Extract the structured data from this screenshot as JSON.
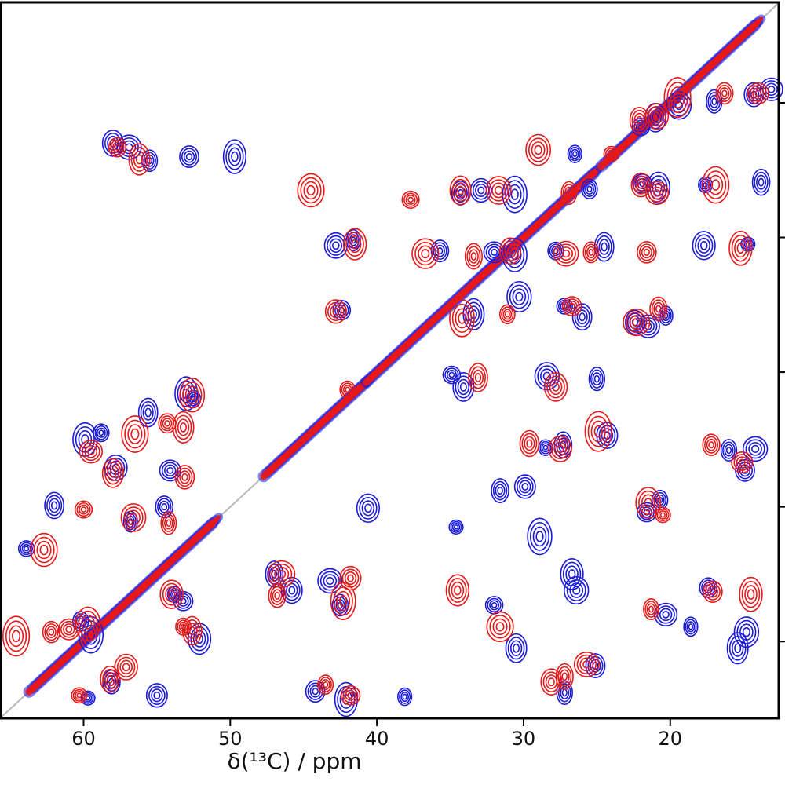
{
  "chart_data": {
    "type": "scatter",
    "subtype": "2D NMR correlation contour spectrum",
    "xlabel": "δ(¹³C) / ppm",
    "ylabel": "",
    "x_reversed": true,
    "xlim": [
      65.7,
      12.6
    ],
    "ylim": [
      12.6,
      65.7
    ],
    "x_ticks": [
      60,
      50,
      40,
      30,
      20
    ],
    "x_tick_labels": [
      "60",
      "50",
      "40",
      "30",
      "20"
    ],
    "diagonal": true,
    "diagonal_color": "#b8b8b8",
    "series": [
      {
        "color": "#1a1adc",
        "peaks": [
          [
            59.7,
            64.2
          ],
          [
            58.1,
            63.0
          ],
          [
            55.0,
            64.0
          ],
          [
            59.5,
            59.5
          ],
          [
            60.2,
            58.5
          ],
          [
            53.2,
            57.0
          ],
          [
            52.1,
            59.8
          ],
          [
            53.8,
            56.5
          ],
          [
            47.0,
            55.0
          ],
          [
            45.8,
            56.2
          ],
          [
            43.2,
            55.5
          ],
          [
            42.5,
            57.3
          ],
          [
            44.2,
            63.7
          ],
          [
            42.1,
            64.3
          ],
          [
            38.1,
            64.1
          ],
          [
            32.0,
            57.3
          ],
          [
            30.5,
            60.5
          ],
          [
            26.4,
            56.2
          ],
          [
            27.2,
            63.8
          ],
          [
            25.1,
            61.8
          ],
          [
            20.3,
            58.0
          ],
          [
            18.6,
            58.9
          ],
          [
            17.4,
            56.0
          ],
          [
            15.4,
            60.5
          ],
          [
            14.8,
            59.3
          ],
          [
            63.9,
            53.1
          ],
          [
            62.0,
            49.9
          ],
          [
            57.8,
            47.1
          ],
          [
            56.8,
            51.1
          ],
          [
            54.5,
            50.0
          ],
          [
            54.1,
            47.3
          ],
          [
            59.9,
            45.0
          ],
          [
            58.8,
            44.5
          ],
          [
            55.6,
            43.0
          ],
          [
            40.6,
            50.1
          ],
          [
            34.6,
            51.5
          ],
          [
            31.6,
            48.8
          ],
          [
            29.9,
            48.5
          ],
          [
            28.9,
            52.2
          ],
          [
            20.7,
            49.5
          ],
          [
            21.6,
            50.4
          ],
          [
            26.7,
            55.0
          ],
          [
            28.5,
            45.6
          ],
          [
            27.3,
            45.4
          ],
          [
            24.3,
            44.7
          ],
          [
            14.2,
            45.7
          ],
          [
            16.0,
            45.8
          ],
          [
            14.9,
            47.3
          ],
          [
            53.0,
            41.6
          ],
          [
            52.5,
            42.0
          ],
          [
            34.9,
            40.2
          ],
          [
            34.1,
            41.1
          ],
          [
            28.4,
            40.3
          ],
          [
            25.0,
            40.5
          ],
          [
            22.4,
            36.3
          ],
          [
            21.5,
            36.6
          ],
          [
            20.3,
            35.8
          ],
          [
            42.4,
            35.4
          ],
          [
            33.4,
            35.7
          ],
          [
            30.3,
            34.4
          ],
          [
            27.2,
            35.1
          ],
          [
            26.0,
            35.9
          ],
          [
            42.8,
            30.6
          ],
          [
            41.6,
            30.2
          ],
          [
            35.7,
            31.0
          ],
          [
            32.0,
            31.1
          ],
          [
            30.6,
            31.3
          ],
          [
            27.8,
            31.0
          ],
          [
            24.5,
            30.7
          ],
          [
            17.7,
            30.6
          ],
          [
            14.7,
            30.5
          ],
          [
            34.3,
            26.7
          ],
          [
            32.9,
            26.5
          ],
          [
            30.6,
            26.8
          ],
          [
            25.5,
            26.4
          ],
          [
            21.9,
            26.0
          ],
          [
            20.8,
            26.3
          ],
          [
            17.6,
            26.1
          ],
          [
            13.8,
            25.9
          ],
          [
            58.0,
            23.0
          ],
          [
            56.9,
            23.3
          ],
          [
            55.5,
            24.3
          ],
          [
            52.8,
            24.0
          ],
          [
            49.7,
            24.0
          ],
          [
            26.5,
            23.8
          ],
          [
            22.0,
            21.8
          ],
          [
            21.0,
            21.1
          ],
          [
            19.4,
            20.2
          ],
          [
            17.0,
            19.9
          ],
          [
            14.3,
            19.4
          ],
          [
            13.1,
            19.0
          ]
        ]
      },
      {
        "color": "#e81818",
        "peaks": [
          [
            60.3,
            64.0
          ],
          [
            58.2,
            62.8
          ],
          [
            57.1,
            61.9
          ],
          [
            64.6,
            59.6
          ],
          [
            62.2,
            59.3
          ],
          [
            61.0,
            59.1
          ],
          [
            59.7,
            58.7
          ],
          [
            53.2,
            58.9
          ],
          [
            52.6,
            59.2
          ],
          [
            54.0,
            56.5
          ],
          [
            46.5,
            55.0
          ],
          [
            46.8,
            56.6
          ],
          [
            41.8,
            55.3
          ],
          [
            42.3,
            57.0
          ],
          [
            43.5,
            63.2
          ],
          [
            41.8,
            64.0
          ],
          [
            34.5,
            56.2
          ],
          [
            31.6,
            58.9
          ],
          [
            27.2,
            62.6
          ],
          [
            28.1,
            63.0
          ],
          [
            25.7,
            61.7
          ],
          [
            21.3,
            57.6
          ],
          [
            17.1,
            56.3
          ],
          [
            14.5,
            56.5
          ],
          [
            62.7,
            53.2
          ],
          [
            60.0,
            50.2
          ],
          [
            58.0,
            47.5
          ],
          [
            56.6,
            50.8
          ],
          [
            54.2,
            51.2
          ],
          [
            53.1,
            47.8
          ],
          [
            59.5,
            45.9
          ],
          [
            56.5,
            44.6
          ],
          [
            54.3,
            43.8
          ],
          [
            53.2,
            44.1
          ],
          [
            21.5,
            49.7
          ],
          [
            20.5,
            50.6
          ],
          [
            29.6,
            45.3
          ],
          [
            27.5,
            45.7
          ],
          [
            24.9,
            44.4
          ],
          [
            17.2,
            45.4
          ],
          [
            15.1,
            46.7
          ],
          [
            52.6,
            41.7
          ],
          [
            42.0,
            41.3
          ],
          [
            33.1,
            40.4
          ],
          [
            27.8,
            41.1
          ],
          [
            22.3,
            36.3
          ],
          [
            20.8,
            35.3
          ],
          [
            42.8,
            35.5
          ],
          [
            34.2,
            36.0
          ],
          [
            31.1,
            35.7
          ],
          [
            26.7,
            35.1
          ],
          [
            41.5,
            30.5
          ],
          [
            36.7,
            31.2
          ],
          [
            33.4,
            31.4
          ],
          [
            30.9,
            31.0
          ],
          [
            27.1,
            31.2
          ],
          [
            25.4,
            31.1
          ],
          [
            21.6,
            31.1
          ],
          [
            15.2,
            30.8
          ],
          [
            44.5,
            26.5
          ],
          [
            37.7,
            27.2
          ],
          [
            34.3,
            26.5
          ],
          [
            31.7,
            26.5
          ],
          [
            26.9,
            26.7
          ],
          [
            22.0,
            26.1
          ],
          [
            20.9,
            26.7
          ],
          [
            16.9,
            26.1
          ],
          [
            57.7,
            23.3
          ],
          [
            56.2,
            24.2
          ],
          [
            29.0,
            23.5
          ],
          [
            24.0,
            23.8
          ],
          [
            22.1,
            21.3
          ],
          [
            20.9,
            21.0
          ],
          [
            19.5,
            19.6
          ],
          [
            16.3,
            19.3
          ],
          [
            14.0,
            19.3
          ]
        ]
      }
    ]
  }
}
